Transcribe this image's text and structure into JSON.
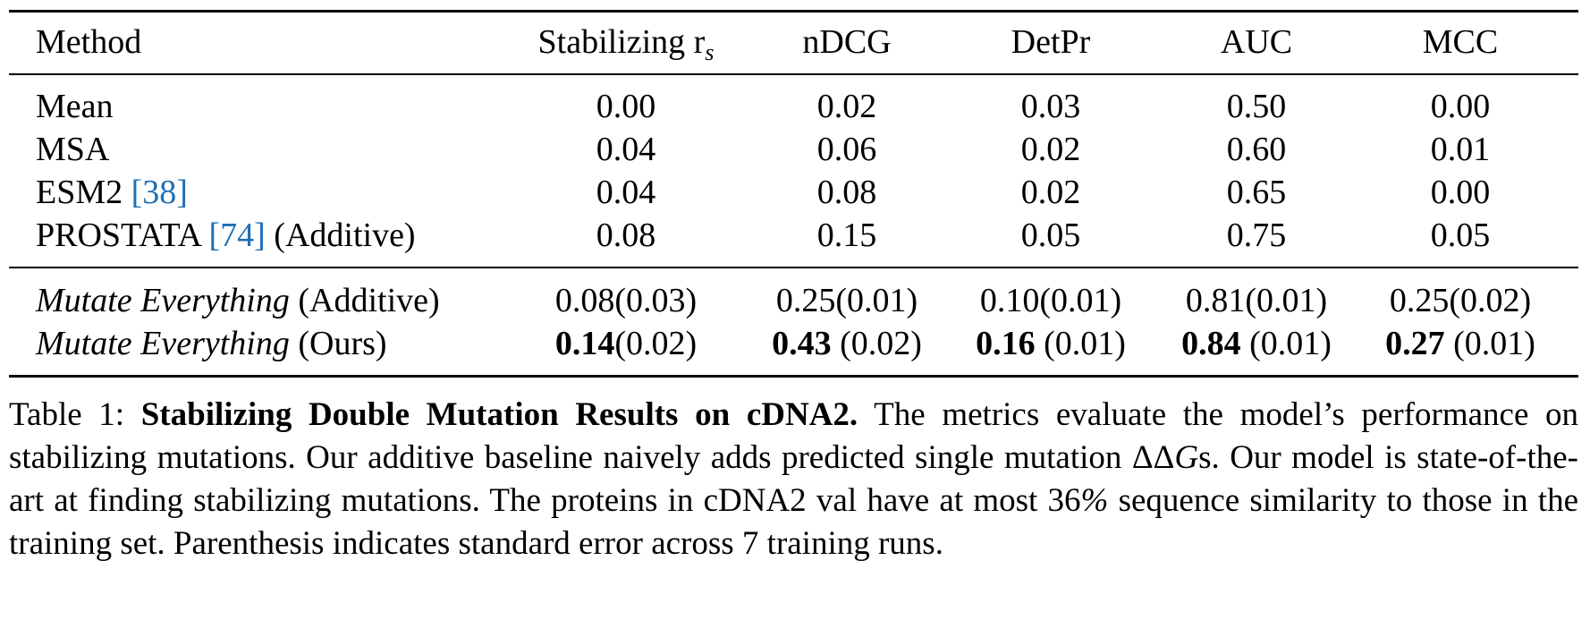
{
  "table": {
    "header": {
      "method": "Method",
      "stabilizing_base": "Stabilizing r",
      "stabilizing_sub": "s",
      "ndcg": "nDCG",
      "detpr": "DetPr",
      "auc": "AUC",
      "mcc": "MCC"
    },
    "rows": [
      {
        "method": "Mean",
        "cite": "",
        "suffix": "",
        "vals": [
          "0.00",
          "0.02",
          "0.03",
          "0.50",
          "0.00"
        ]
      },
      {
        "method": "MSA",
        "cite": "",
        "suffix": "",
        "vals": [
          "0.04",
          "0.06",
          "0.02",
          "0.60",
          "0.01"
        ]
      },
      {
        "method": "ESM2 ",
        "cite": "[38]",
        "suffix": "",
        "vals": [
          "0.04",
          "0.08",
          "0.02",
          "0.65",
          "0.00"
        ]
      },
      {
        "method": "PROSTATA ",
        "cite": "[74]",
        "suffix": " (Additive)",
        "vals": [
          "0.08",
          "0.15",
          "0.05",
          "0.75",
          "0.05"
        ]
      }
    ],
    "ours_rows": [
      {
        "method_it": "Mutate Everything",
        "suffix": " (Additive)",
        "vals": [
          {
            "main": "0.08",
            "se": "(0.03)"
          },
          {
            "main": "0.25",
            "se": "(0.01)"
          },
          {
            "main": "0.10",
            "se": "(0.01)"
          },
          {
            "main": "0.81",
            "se": "(0.01)"
          },
          {
            "main": "0.25",
            "se": "(0.02)"
          }
        ]
      },
      {
        "method_it": "Mutate Everything",
        "suffix": " (Ours)",
        "vals": [
          {
            "main": "0.14",
            "se": "(0.02)"
          },
          {
            "main": "0.43",
            "se": " (0.02)"
          },
          {
            "main": "0.16",
            "se": " (0.01)"
          },
          {
            "main": "0.84",
            "se": " (0.01)"
          },
          {
            "main": "0.27",
            "se": " (0.01)"
          }
        ]
      }
    ]
  },
  "caption": {
    "label": "Table 1: ",
    "title": "Stabilizing Double Mutation Results on cDNA2.",
    "text1": " The metrics evaluate the model’s performance on stabilizing mutations. Our additive baseline naively adds predicted single mutation ",
    "delta": "ΔΔ",
    "g": "G",
    "text2": "s. Our model is state-of-the-art at finding stabilizing mutations. The proteins in cDNA2 val have at most 36",
    "percent": "%",
    "text3": " sequence similarity to those in the training set. Parenthesis indicates standard error across 7 training runs."
  }
}
